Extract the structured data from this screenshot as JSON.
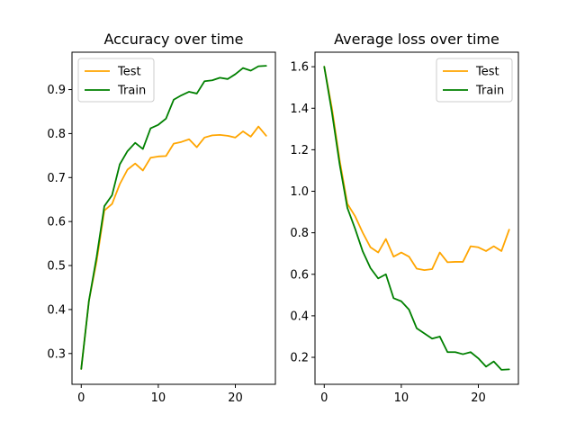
{
  "chart_data": [
    {
      "type": "line",
      "title": "Accuracy over time",
      "xlabel": "",
      "ylabel": "",
      "xlim": [
        -1.2,
        25.2
      ],
      "ylim": [
        0.23,
        0.985
      ],
      "xticks": [
        0,
        10,
        20
      ],
      "yticks": [
        0.3,
        0.4,
        0.5,
        0.6,
        0.7,
        0.8,
        0.9
      ],
      "legend": "top-left",
      "x": [
        0,
        1,
        2,
        3,
        4,
        5,
        6,
        7,
        8,
        9,
        10,
        11,
        12,
        13,
        14,
        15,
        16,
        17,
        18,
        19,
        20,
        21,
        22,
        23,
        24
      ],
      "series": [
        {
          "name": "Test",
          "color": "#ffa500",
          "values": [
            0.265,
            0.42,
            0.51,
            0.625,
            0.64,
            0.685,
            0.718,
            0.732,
            0.716,
            0.745,
            0.748,
            0.749,
            0.777,
            0.781,
            0.787,
            0.769,
            0.791,
            0.796,
            0.797,
            0.795,
            0.791,
            0.805,
            0.793,
            0.816,
            0.795
          ]
        },
        {
          "name": "Train",
          "color": "#008000",
          "values": [
            0.265,
            0.42,
            0.52,
            0.635,
            0.66,
            0.73,
            0.76,
            0.779,
            0.765,
            0.812,
            0.82,
            0.834,
            0.877,
            0.887,
            0.895,
            0.891,
            0.919,
            0.921,
            0.927,
            0.924,
            0.935,
            0.949,
            0.943,
            0.953,
            0.954
          ]
        }
      ]
    },
    {
      "type": "line",
      "title": "Average loss over time",
      "xlabel": "",
      "ylabel": "",
      "xlim": [
        -1.2,
        25.2
      ],
      "ylim": [
        0.07,
        1.67
      ],
      "xticks": [
        0,
        10,
        20
      ],
      "yticks": [
        0.2,
        0.4,
        0.6,
        0.8,
        1.0,
        1.2,
        1.4,
        1.6
      ],
      "legend": "top-right",
      "x": [
        0,
        1,
        2,
        3,
        4,
        5,
        6,
        7,
        8,
        9,
        10,
        11,
        12,
        13,
        14,
        15,
        16,
        17,
        18,
        19,
        20,
        21,
        22,
        23,
        24
      ],
      "series": [
        {
          "name": "Test",
          "color": "#ffa500",
          "values": [
            1.6,
            1.4,
            1.15,
            0.94,
            0.88,
            0.8,
            0.73,
            0.705,
            0.77,
            0.685,
            0.705,
            0.685,
            0.627,
            0.62,
            0.625,
            0.705,
            0.658,
            0.66,
            0.66,
            0.735,
            0.73,
            0.712,
            0.735,
            0.712,
            0.815
          ]
        },
        {
          "name": "Train",
          "color": "#008000",
          "values": [
            1.6,
            1.38,
            1.13,
            0.92,
            0.82,
            0.71,
            0.63,
            0.58,
            0.6,
            0.485,
            0.47,
            0.43,
            0.34,
            0.315,
            0.29,
            0.3,
            0.225,
            0.225,
            0.215,
            0.225,
            0.195,
            0.155,
            0.18,
            0.14,
            0.142
          ]
        }
      ]
    }
  ]
}
